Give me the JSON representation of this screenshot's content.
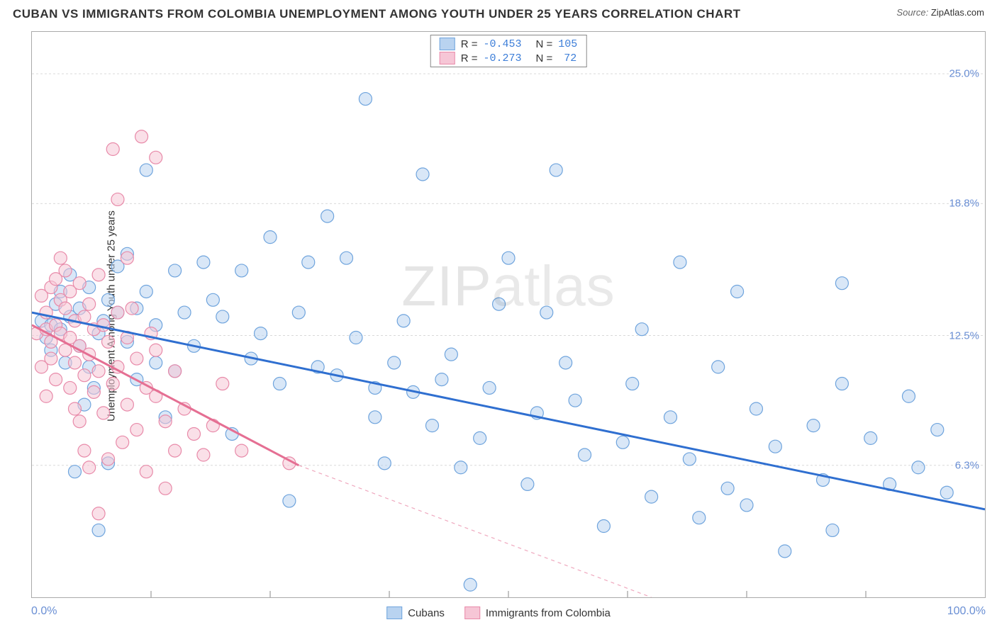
{
  "title": "CUBAN VS IMMIGRANTS FROM COLOMBIA UNEMPLOYMENT AMONG YOUTH UNDER 25 YEARS CORRELATION CHART",
  "source_prefix": "Source:",
  "source_name": "ZipAtlas.com",
  "ylabel": "Unemployment Among Youth under 25 years",
  "watermark_a": "ZIP",
  "watermark_b": "atlas",
  "chart": {
    "type": "scatter",
    "xlim": [
      0,
      100
    ],
    "ylim": [
      0,
      27
    ],
    "x_min_label": "0.0%",
    "x_max_label": "100.0%",
    "x_ticks": [
      12.5,
      25,
      37.5,
      50,
      62.5,
      75,
      87.5
    ],
    "y_ticks": [
      {
        "v": 6.3,
        "label": "6.3%"
      },
      {
        "v": 12.5,
        "label": "12.5%"
      },
      {
        "v": 18.8,
        "label": "18.8%"
      },
      {
        "v": 25.0,
        "label": "25.0%"
      }
    ],
    "grid_color": "#d9d9d9",
    "background_color": "#ffffff",
    "marker_radius": 9,
    "marker_opacity": 0.55,
    "series": [
      {
        "name": "Cubans",
        "color_fill": "#b9d3f0",
        "color_stroke": "#6fa4dd",
        "line_color": "#2f6fd0",
        "swatch_fill": "#b9d3f0",
        "swatch_border": "#6fa4dd",
        "R": "-0.453",
        "N": "105",
        "trend": {
          "x1": 0,
          "y1": 13.6,
          "x2": 100,
          "y2": 4.2,
          "dash_after_x": 100
        },
        "points": [
          [
            1,
            13.2
          ],
          [
            1.5,
            12.4
          ],
          [
            2,
            13.0
          ],
          [
            2,
            11.8
          ],
          [
            2.5,
            14.0
          ],
          [
            3,
            12.8
          ],
          [
            3,
            14.6
          ],
          [
            3.5,
            11.2
          ],
          [
            4,
            15.4
          ],
          [
            4,
            13.4
          ],
          [
            4.5,
            6.0
          ],
          [
            5,
            12.0
          ],
          [
            5,
            13.8
          ],
          [
            5.5,
            9.2
          ],
          [
            6,
            11.0
          ],
          [
            6,
            14.8
          ],
          [
            6.5,
            10.0
          ],
          [
            7,
            12.6
          ],
          [
            7,
            3.2
          ],
          [
            7.5,
            13.2
          ],
          [
            8,
            14.2
          ],
          [
            8,
            6.4
          ],
          [
            9,
            15.8
          ],
          [
            9,
            13.6
          ],
          [
            10,
            16.4
          ],
          [
            10,
            12.2
          ],
          [
            11,
            10.4
          ],
          [
            11,
            13.8
          ],
          [
            12,
            20.4
          ],
          [
            12,
            14.6
          ],
          [
            13,
            13.0
          ],
          [
            13,
            11.2
          ],
          [
            14,
            8.6
          ],
          [
            15,
            15.6
          ],
          [
            15,
            10.8
          ],
          [
            16,
            13.6
          ],
          [
            17,
            12.0
          ],
          [
            18,
            16.0
          ],
          [
            19,
            14.2
          ],
          [
            20,
            13.4
          ],
          [
            21,
            7.8
          ],
          [
            22,
            15.6
          ],
          [
            23,
            11.4
          ],
          [
            24,
            12.6
          ],
          [
            25,
            17.2
          ],
          [
            26,
            10.2
          ],
          [
            27,
            4.6
          ],
          [
            28,
            13.6
          ],
          [
            29,
            16.0
          ],
          [
            30,
            11.0
          ],
          [
            31,
            18.2
          ],
          [
            32,
            10.6
          ],
          [
            33,
            16.2
          ],
          [
            34,
            12.4
          ],
          [
            35,
            23.8
          ],
          [
            36,
            10.0
          ],
          [
            36,
            8.6
          ],
          [
            37,
            6.4
          ],
          [
            38,
            11.2
          ],
          [
            39,
            13.2
          ],
          [
            40,
            9.8
          ],
          [
            41,
            20.2
          ],
          [
            42,
            8.2
          ],
          [
            43,
            10.4
          ],
          [
            44,
            11.6
          ],
          [
            45,
            6.2
          ],
          [
            46,
            0.6
          ],
          [
            47,
            7.6
          ],
          [
            48,
            10.0
          ],
          [
            49,
            14.0
          ],
          [
            50,
            16.2
          ],
          [
            52,
            5.4
          ],
          [
            53,
            8.8
          ],
          [
            54,
            13.6
          ],
          [
            55,
            20.4
          ],
          [
            56,
            11.2
          ],
          [
            57,
            9.4
          ],
          [
            58,
            6.8
          ],
          [
            60,
            3.4
          ],
          [
            62,
            7.4
          ],
          [
            63,
            10.2
          ],
          [
            64,
            12.8
          ],
          [
            65,
            4.8
          ],
          [
            67,
            8.6
          ],
          [
            68,
            16.0
          ],
          [
            69,
            6.6
          ],
          [
            70,
            3.8
          ],
          [
            72,
            11.0
          ],
          [
            73,
            5.2
          ],
          [
            74,
            14.6
          ],
          [
            75,
            4.4
          ],
          [
            76,
            9.0
          ],
          [
            78,
            7.2
          ],
          [
            79,
            2.2
          ],
          [
            82,
            8.2
          ],
          [
            83,
            5.6
          ],
          [
            84,
            3.2
          ],
          [
            85,
            10.2
          ],
          [
            88,
            7.6
          ],
          [
            90,
            5.4
          ],
          [
            92,
            9.6
          ],
          [
            93,
            6.2
          ],
          [
            95,
            8.0
          ],
          [
            96,
            5.0
          ],
          [
            85,
            15.0
          ]
        ]
      },
      {
        "name": "Immigrants from Colombia",
        "color_fill": "#f6c6d6",
        "color_stroke": "#e88aa9",
        "line_color": "#e56f93",
        "swatch_fill": "#f6c6d6",
        "swatch_border": "#e88aa9",
        "R": "-0.273",
        "N": "72",
        "trend": {
          "x1": 0,
          "y1": 13.0,
          "x2": 28,
          "y2": 6.3,
          "dash_to_x": 65,
          "dash_to_y": 0
        },
        "points": [
          [
            0.5,
            12.6
          ],
          [
            1,
            14.4
          ],
          [
            1,
            11.0
          ],
          [
            1.5,
            12.8
          ],
          [
            1.5,
            13.6
          ],
          [
            1.5,
            9.6
          ],
          [
            2,
            14.8
          ],
          [
            2,
            12.2
          ],
          [
            2,
            11.4
          ],
          [
            2.5,
            13.0
          ],
          [
            2.5,
            15.2
          ],
          [
            2.5,
            10.4
          ],
          [
            3,
            14.2
          ],
          [
            3,
            12.6
          ],
          [
            3,
            16.2
          ],
          [
            3.5,
            11.8
          ],
          [
            3.5,
            13.8
          ],
          [
            3.5,
            15.6
          ],
          [
            4,
            12.4
          ],
          [
            4,
            10.0
          ],
          [
            4,
            14.6
          ],
          [
            4.5,
            13.2
          ],
          [
            4.5,
            11.2
          ],
          [
            4.5,
            9.0
          ],
          [
            5,
            15.0
          ],
          [
            5,
            12.0
          ],
          [
            5,
            8.4
          ],
          [
            5.5,
            13.4
          ],
          [
            5.5,
            10.6
          ],
          [
            5.5,
            7.0
          ],
          [
            6,
            14.0
          ],
          [
            6,
            11.6
          ],
          [
            6,
            6.2
          ],
          [
            6.5,
            12.8
          ],
          [
            6.5,
            9.8
          ],
          [
            7,
            15.4
          ],
          [
            7,
            10.8
          ],
          [
            7,
            4.0
          ],
          [
            7.5,
            13.0
          ],
          [
            7.5,
            8.8
          ],
          [
            8,
            12.2
          ],
          [
            8,
            6.6
          ],
          [
            8.5,
            21.4
          ],
          [
            8.5,
            10.2
          ],
          [
            9,
            13.6
          ],
          [
            9,
            11.0
          ],
          [
            9,
            19.0
          ],
          [
            9.5,
            7.4
          ],
          [
            10,
            12.4
          ],
          [
            10,
            9.2
          ],
          [
            10,
            16.2
          ],
          [
            10.5,
            13.8
          ],
          [
            11,
            11.4
          ],
          [
            11,
            8.0
          ],
          [
            11.5,
            22.0
          ],
          [
            12,
            10.0
          ],
          [
            12,
            6.0
          ],
          [
            12.5,
            12.6
          ],
          [
            13,
            9.6
          ],
          [
            13,
            11.8
          ],
          [
            13,
            21.0
          ],
          [
            14,
            8.4
          ],
          [
            14,
            5.2
          ],
          [
            15,
            10.8
          ],
          [
            15,
            7.0
          ],
          [
            16,
            9.0
          ],
          [
            17,
            7.8
          ],
          [
            18,
            6.8
          ],
          [
            19,
            8.2
          ],
          [
            20,
            10.2
          ],
          [
            22,
            7.0
          ],
          [
            27,
            6.4
          ]
        ]
      }
    ]
  },
  "legend_bottom": [
    {
      "label": "Cubans",
      "fill": "#b9d3f0",
      "border": "#6fa4dd"
    },
    {
      "label": "Immigrants from Colombia",
      "fill": "#f6c6d6",
      "border": "#e88aa9"
    }
  ],
  "stat_color": "#3b7dd8"
}
